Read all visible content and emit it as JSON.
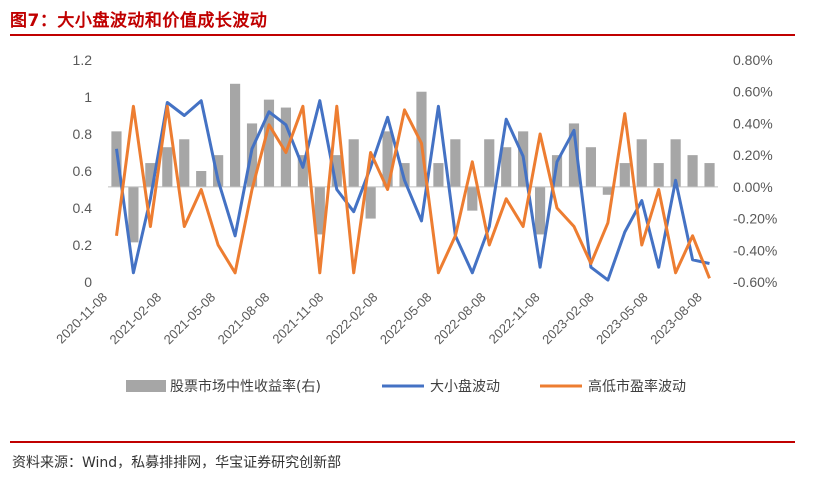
{
  "figure": {
    "title": "图7：大小盘波动和价值成长波动",
    "source": "资料来源：Wind，私募排排网，华宝证券研究创新部"
  },
  "colors": {
    "bars": "#a6a6a6",
    "size_vol": "#4472c4",
    "pe_vol": "#ed7d31",
    "rule": "#c00000"
  },
  "chart_data": {
    "type": "line",
    "x": [
      "2020-11",
      "2020-12",
      "2021-01",
      "2021-02",
      "2021-03",
      "2021-04",
      "2021-05",
      "2021-06",
      "2021-07",
      "2021-08",
      "2021-09",
      "2021-10",
      "2021-11",
      "2021-12",
      "2022-01",
      "2022-02",
      "2022-03",
      "2022-04",
      "2022-05",
      "2022-06",
      "2022-07",
      "2022-08",
      "2022-09",
      "2022-10",
      "2022-11",
      "2022-12",
      "2023-01",
      "2023-02",
      "2023-03",
      "2023-04",
      "2023-05",
      "2023-06",
      "2023-07",
      "2023-08",
      "2023-09",
      "2023-10"
    ],
    "x_tick_labels": [
      "2020-11-08",
      "2021-02-08",
      "2021-05-08",
      "2021-08-08",
      "2021-11-08",
      "2022-02-08",
      "2022-05-08",
      "2022-08-08",
      "2022-11-08",
      "2023-02-08",
      "2023-05-08",
      "2023-08-08"
    ],
    "y_left": {
      "ticks": [
        "0",
        "0.2",
        "0.4",
        "0.6",
        "0.8",
        "1",
        "1.2"
      ],
      "ylim": [
        0,
        1.2
      ]
    },
    "y_right": {
      "ticks": [
        "-0.60%",
        "-0.40%",
        "-0.20%",
        "0.00%",
        "0.20%",
        "0.40%",
        "0.60%",
        "0.80%"
      ],
      "ylim": [
        -0.6,
        0.8
      ]
    },
    "series": [
      {
        "name": "股票市场中性收益率(右)",
        "type": "bar",
        "axis": "right",
        "values": [
          0.35,
          -0.35,
          0.15,
          0.25,
          0.3,
          0.1,
          0.2,
          0.65,
          0.4,
          0.55,
          0.5,
          0.2,
          -0.3,
          0.2,
          0.3,
          -0.2,
          0.35,
          0.15,
          0.6,
          0.15,
          0.3,
          -0.15,
          0.3,
          0.25,
          0.35,
          -0.3,
          0.2,
          0.4,
          0.25,
          -0.05,
          0.15,
          0.3,
          0.15,
          0.3,
          0.2,
          0.15
        ]
      },
      {
        "name": "大小盘波动",
        "type": "line",
        "axis": "left",
        "values": [
          0.72,
          0.05,
          0.45,
          0.97,
          0.9,
          0.98,
          0.55,
          0.25,
          0.72,
          0.92,
          0.85,
          0.62,
          0.98,
          0.5,
          0.38,
          0.62,
          0.89,
          0.55,
          0.33,
          0.95,
          0.25,
          0.05,
          0.3,
          0.88,
          0.68,
          0.08,
          0.65,
          0.82,
          0.08,
          0.01,
          0.27,
          0.44,
          0.08,
          0.55,
          0.12,
          0.1
        ]
      },
      {
        "name": "高低市盈率波动",
        "type": "line",
        "axis": "left",
        "values": [
          0.25,
          0.95,
          0.3,
          0.95,
          0.3,
          0.5,
          0.2,
          0.05,
          0.5,
          0.85,
          0.7,
          0.95,
          0.05,
          0.95,
          0.05,
          0.7,
          0.5,
          0.93,
          0.75,
          0.05,
          0.25,
          0.65,
          0.2,
          0.45,
          0.3,
          0.8,
          0.4,
          0.3,
          0.1,
          0.32,
          0.91,
          0.2,
          0.5,
          0.05,
          0.25,
          0.02
        ]
      }
    ],
    "legend_position": "bottom",
    "grid": false
  }
}
